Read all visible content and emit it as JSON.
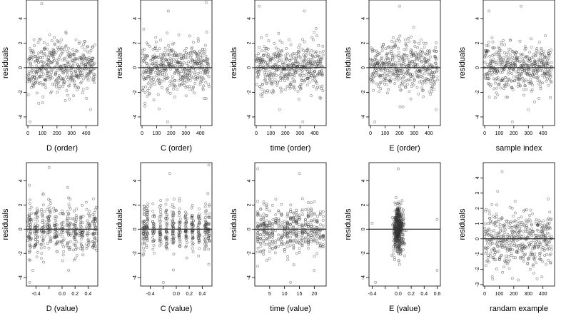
{
  "colors": {
    "points": "#333333",
    "axis": "#000000",
    "zero_line": "#000000",
    "background": "#ffffff"
  },
  "chart_data": [
    {
      "type": "scatter",
      "xlabel": "D (order)",
      "ylabel": "residuals",
      "xlim": [
        -10,
        480
      ],
      "ylim": [
        -4.7,
        5.5
      ],
      "xticks": [
        0,
        100,
        200,
        300,
        400
      ],
      "xticklabels": [
        "0",
        "100",
        "200",
        "300",
        "400"
      ],
      "yticks": [
        -4,
        -2,
        0,
        2,
        4
      ],
      "yticklabels": [
        "-4",
        "-2",
        "0",
        "2",
        "4"
      ],
      "zero_line": 0,
      "gen": {
        "mode": "index",
        "n": 470,
        "lo": 0,
        "hi": 460,
        "sd": 1.0,
        "seed": 11
      },
      "outliers": [
        {
          "x": 95,
          "y": 5.2
        },
        {
          "x": 15,
          "y": -4.4
        },
        {
          "x": 430,
          "y": -3.4
        },
        {
          "x": 75,
          "y": -2.9
        }
      ]
    },
    {
      "type": "scatter",
      "xlabel": "C (order)",
      "ylabel": "residuals",
      "xlim": [
        -10,
        480
      ],
      "ylim": [
        -4.7,
        5.5
      ],
      "xticks": [
        0,
        100,
        200,
        300,
        400
      ],
      "xticklabels": [
        "0",
        "100",
        "200",
        "300",
        "400"
      ],
      "yticks": [
        -4,
        -2,
        0,
        2,
        4
      ],
      "yticklabels": [
        "-4",
        "-2",
        "0",
        "2",
        "4"
      ],
      "zero_line": 0,
      "gen": {
        "mode": "index",
        "n": 470,
        "lo": 0,
        "hi": 460,
        "sd": 1.0,
        "seed": 22
      },
      "outliers": [
        {
          "x": 180,
          "y": 4.6
        },
        {
          "x": 440,
          "y": 5.3
        },
        {
          "x": 175,
          "y": -4.4
        },
        {
          "x": 20,
          "y": -2.9
        }
      ]
    },
    {
      "type": "scatter",
      "xlabel": "time (order)",
      "ylabel": "residuals",
      "xlim": [
        -10,
        480
      ],
      "ylim": [
        -4.7,
        5.5
      ],
      "xticks": [
        0,
        100,
        200,
        300,
        400
      ],
      "xticklabels": [
        "0",
        "100",
        "200",
        "300",
        "400"
      ],
      "yticks": [
        -4,
        -2,
        0,
        2,
        4
      ],
      "yticklabels": [
        "-4",
        "-2",
        "0",
        "2",
        "4"
      ],
      "zero_line": 0,
      "gen": {
        "mode": "index",
        "n": 470,
        "lo": 0,
        "hi": 460,
        "sd": 1.0,
        "seed": 33
      },
      "outliers": [
        {
          "x": 20,
          "y": 5.0
        },
        {
          "x": 330,
          "y": 4.6
        },
        {
          "x": 320,
          "y": -4.4
        },
        {
          "x": 160,
          "y": -3.4
        }
      ]
    },
    {
      "type": "scatter",
      "xlabel": "E (order)",
      "ylabel": "residuals",
      "xlim": [
        -10,
        480
      ],
      "ylim": [
        -4.7,
        5.5
      ],
      "xticks": [
        0,
        100,
        200,
        300,
        400
      ],
      "xticklabels": [
        "0",
        "100",
        "200",
        "300",
        "400"
      ],
      "yticks": [
        -4,
        -2,
        0,
        2,
        4
      ],
      "yticklabels": [
        "-4",
        "-2",
        "0",
        "2",
        "4"
      ],
      "zero_line": 0,
      "gen": {
        "mode": "index",
        "n": 470,
        "lo": 0,
        "hi": 460,
        "sd": 1.0,
        "seed": 44
      },
      "outliers": [
        {
          "x": 200,
          "y": 5.0
        },
        {
          "x": 30,
          "y": -4.4
        },
        {
          "x": 450,
          "y": -3.4
        }
      ]
    },
    {
      "type": "scatter",
      "xlabel": "sample index",
      "ylabel": "residuals",
      "xlim": [
        -10,
        480
      ],
      "ylim": [
        -4.7,
        5.5
      ],
      "xticks": [
        0,
        100,
        200,
        300,
        400
      ],
      "xticklabels": [
        "0",
        "100",
        "200",
        "300",
        "400"
      ],
      "yticks": [
        -4,
        -2,
        0,
        2,
        4
      ],
      "yticklabels": [
        "-4",
        "-2",
        "0",
        "2",
        "4"
      ],
      "zero_line": 0,
      "gen": {
        "mode": "index",
        "n": 470,
        "lo": 0,
        "hi": 460,
        "sd": 1.0,
        "seed": 55
      },
      "outliers": [
        {
          "x": 250,
          "y": 5.0
        },
        {
          "x": 30,
          "y": 4.6
        },
        {
          "x": 190,
          "y": -4.4
        },
        {
          "x": 300,
          "y": -3.4
        }
      ]
    },
    {
      "type": "scatter",
      "xlabel": "D (value)",
      "ylabel": "residuals",
      "xlim": [
        -0.55,
        0.55
      ],
      "ylim": [
        -4.7,
        5.5
      ],
      "xticks": [
        -0.4,
        -0.2,
        0,
        0.2,
        0.4
      ],
      "xticklabels": [
        "-0.4",
        "",
        "0.0",
        "0.2",
        "0.4"
      ],
      "yticks": [
        -4,
        -2,
        0,
        2,
        4
      ],
      "yticklabels": [
        "-4",
        "-2",
        "0",
        "2",
        "4"
      ],
      "zero_line": 0,
      "gen": {
        "mode": "levels",
        "n": 470,
        "levels": [
          -0.5,
          -0.4,
          -0.3,
          -0.2,
          -0.1,
          0,
          0.1,
          0.2,
          0.3,
          0.4,
          0.5
        ],
        "jitter": 0.03,
        "sd": 1.0,
        "seed": 66
      },
      "outliers": [
        {
          "x": -0.2,
          "y": 5.1
        },
        {
          "x": -0.5,
          "y": -4.4
        },
        {
          "x": -0.45,
          "y": -3.4
        },
        {
          "x": 0.1,
          "y": -3.4
        }
      ]
    },
    {
      "type": "scatter",
      "xlabel": "C (value)",
      "ylabel": "residuals",
      "xlim": [
        -0.55,
        0.55
      ],
      "ylim": [
        -4.7,
        5.5
      ],
      "xticks": [
        -0.4,
        -0.2,
        0,
        0.2,
        0.4
      ],
      "xticklabels": [
        "-0.4",
        "",
        "0.0",
        "0.2",
        "0.4"
      ],
      "yticks": [
        -4,
        -2,
        0,
        2,
        4
      ],
      "yticklabels": [
        "-4",
        "-2",
        "0",
        "2",
        "4"
      ],
      "zero_line": 0,
      "gen": {
        "mode": "levels",
        "n": 470,
        "levels": [
          -0.5,
          -0.45,
          -0.35,
          -0.25,
          -0.15,
          -0.05,
          0.05,
          0.15,
          0.25,
          0.35,
          0.45,
          0.5
        ],
        "jitter": 0.015,
        "sd": 1.0,
        "seed": 77
      },
      "outliers": [
        {
          "x": -0.1,
          "y": 4.6
        },
        {
          "x": 0.5,
          "y": 5.3
        },
        {
          "x": -0.2,
          "y": -4.4
        },
        {
          "x": 0.5,
          "y": -2.9
        }
      ]
    },
    {
      "type": "scatter",
      "xlabel": "time (value)",
      "ylabel": "residuals",
      "xlim": [
        0,
        24
      ],
      "ylim": [
        -4.7,
        5.5
      ],
      "xticks": [
        5,
        10,
        15,
        20
      ],
      "xticklabels": [
        "5",
        "10",
        "15",
        "20"
      ],
      "yticks": [
        -4,
        -2,
        0,
        2,
        4
      ],
      "yticklabels": [
        "-4",
        "-2",
        "0",
        "2",
        "4"
      ],
      "zero_line": 0,
      "gen": {
        "mode": "levels",
        "n": 470,
        "levels": [
          1,
          2,
          3,
          4,
          5,
          6,
          7,
          8,
          9,
          10,
          11,
          12,
          13,
          14,
          15,
          16,
          17,
          18,
          19,
          20,
          21,
          22,
          23
        ],
        "jitter": 0.1,
        "sd": 1.0,
        "seed": 88
      },
      "outliers": [
        {
          "x": 1,
          "y": 5.0
        },
        {
          "x": 15,
          "y": 4.6
        },
        {
          "x": 12,
          "y": -4.4
        },
        {
          "x": 20,
          "y": -3.4
        }
      ]
    },
    {
      "type": "scatter",
      "xlabel": "E (value)",
      "ylabel": "residuals",
      "xlim": [
        -0.45,
        0.65
      ],
      "ylim": [
        -4.7,
        5.5
      ],
      "xticks": [
        -0.4,
        -0.2,
        0,
        0.2,
        0.4,
        0.6
      ],
      "xticklabels": [
        "-0.4",
        "",
        "0.0",
        "0.2",
        "0.4",
        "0.6"
      ],
      "yticks": [
        -4,
        -2,
        0,
        2,
        4
      ],
      "yticklabels": [
        "-4",
        "-2",
        "0",
        "2",
        "4"
      ],
      "zero_line": 0,
      "gen": {
        "mode": "centered",
        "n": 470,
        "center": 0.0,
        "spread": 0.04,
        "sd": 1.0,
        "seed": 99
      },
      "outliers": [
        {
          "x": 0.0,
          "y": 5.0
        },
        {
          "x": -0.35,
          "y": -4.4
        },
        {
          "x": 0.6,
          "y": -3.4
        },
        {
          "x": 0.6,
          "y": 0.8
        },
        {
          "x": -0.4,
          "y": 0.5
        }
      ]
    },
    {
      "type": "scatter",
      "xlabel": "randam example",
      "ylabel": "residuals",
      "xlim": [
        -10,
        480
      ],
      "ylim": [
        -3.1,
        5.0
      ],
      "xticks": [
        0,
        100,
        200,
        300,
        400
      ],
      "xticklabels": [
        "0",
        "100",
        "200",
        "300",
        "400"
      ],
      "yticks": [
        -3,
        -2,
        -1,
        0,
        1,
        2,
        3,
        4
      ],
      "yticklabels": [
        "-3",
        "-2",
        "-1",
        "0",
        "1",
        "2",
        "3",
        "4"
      ],
      "zero_line": 0,
      "gen": {
        "mode": "index",
        "n": 470,
        "lo": 0,
        "hi": 460,
        "sd": 1.0,
        "seed": 123
      },
      "outliers": [
        {
          "x": 120,
          "y": 4.4
        },
        {
          "x": 190,
          "y": -2.6
        }
      ]
    }
  ]
}
